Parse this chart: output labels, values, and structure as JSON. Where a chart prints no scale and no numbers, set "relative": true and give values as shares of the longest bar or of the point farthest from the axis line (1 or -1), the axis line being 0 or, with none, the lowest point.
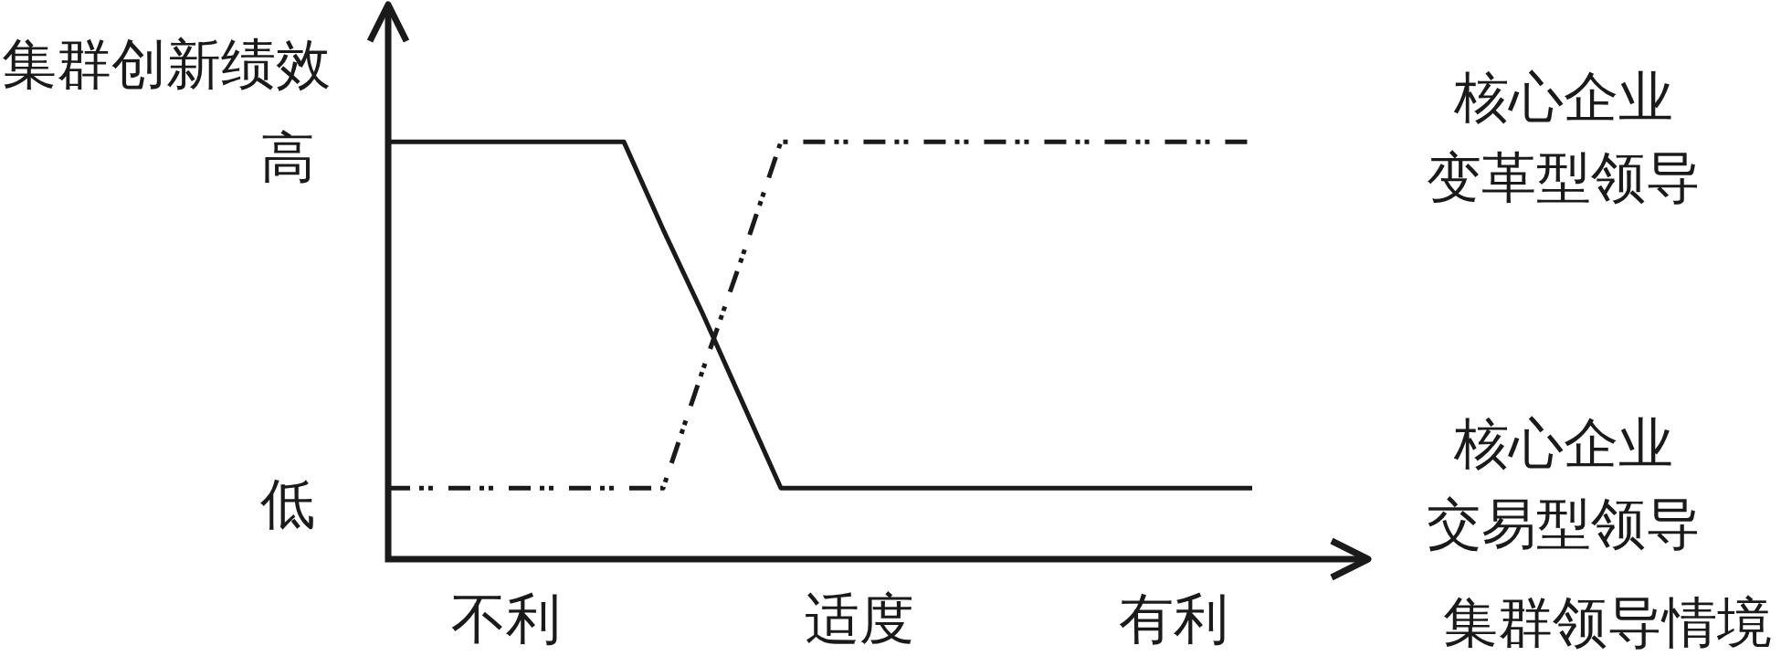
{
  "chart_data": {
    "type": "line",
    "ylabel": "集群创新绩效",
    "xlabel": "集群领导情境",
    "relative": true,
    "categories": [
      null,
      null,
      null,
      "不利",
      null,
      null,
      null,
      null,
      null,
      null,
      null,
      null,
      "适度",
      null,
      null,
      null,
      null,
      null,
      null,
      null,
      "有利",
      null,
      null,
      null,
      null,
      null
    ],
    "series": [
      {
        "name": "核心企业交易型领导",
        "color": "#1a1a1a",
        "line_style": "solid",
        "values": [
          1,
          1,
          1,
          1,
          1,
          1,
          1,
          0.79,
          0.59,
          0.38,
          0.17,
          0.17,
          0.17,
          0.17,
          0.17,
          0.17,
          0.17,
          0.17,
          0.17,
          0.17,
          0.17,
          0.17,
          0.17,
          null,
          null,
          null
        ]
      },
      {
        "name": "核心企业变革型领导",
        "color": "#1a1a1a",
        "line_style": "dashed",
        "values": [
          0.17,
          0.17,
          0.17,
          0.17,
          0.17,
          0.17,
          0.17,
          0.17,
          0.45,
          0.72,
          1,
          1,
          1,
          1,
          1,
          1,
          1,
          1,
          1,
          1,
          1,
          1,
          1,
          null,
          null,
          null
        ]
      }
    ],
    "annotations": [
      "高",
      "低"
    ]
  }
}
